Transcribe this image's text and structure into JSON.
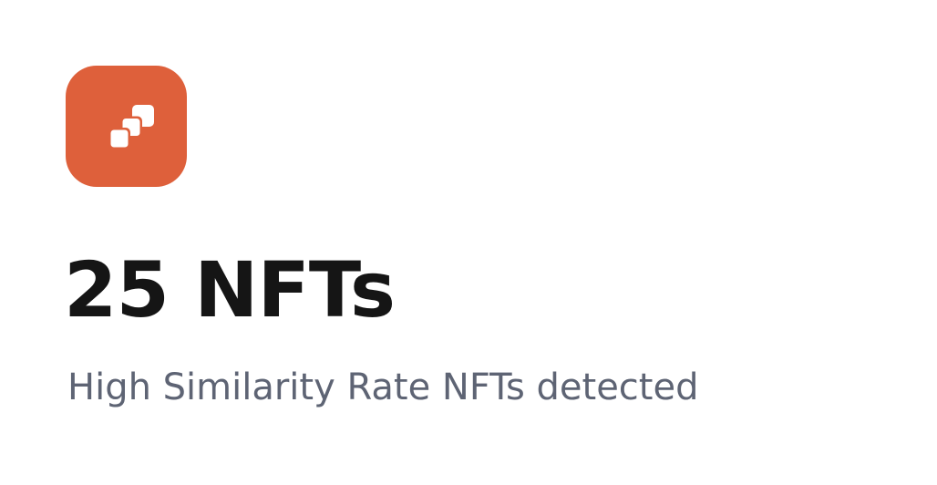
{
  "card": {
    "icon": "stacked-squares-icon",
    "count_text": "25 NFTs",
    "subtitle": "High Similarity Rate NFTs detected"
  },
  "colors": {
    "accent": "#DE603B",
    "title": "#151515",
    "subtitle": "#5E6474",
    "icon_glyph": "#FFFFFF"
  }
}
